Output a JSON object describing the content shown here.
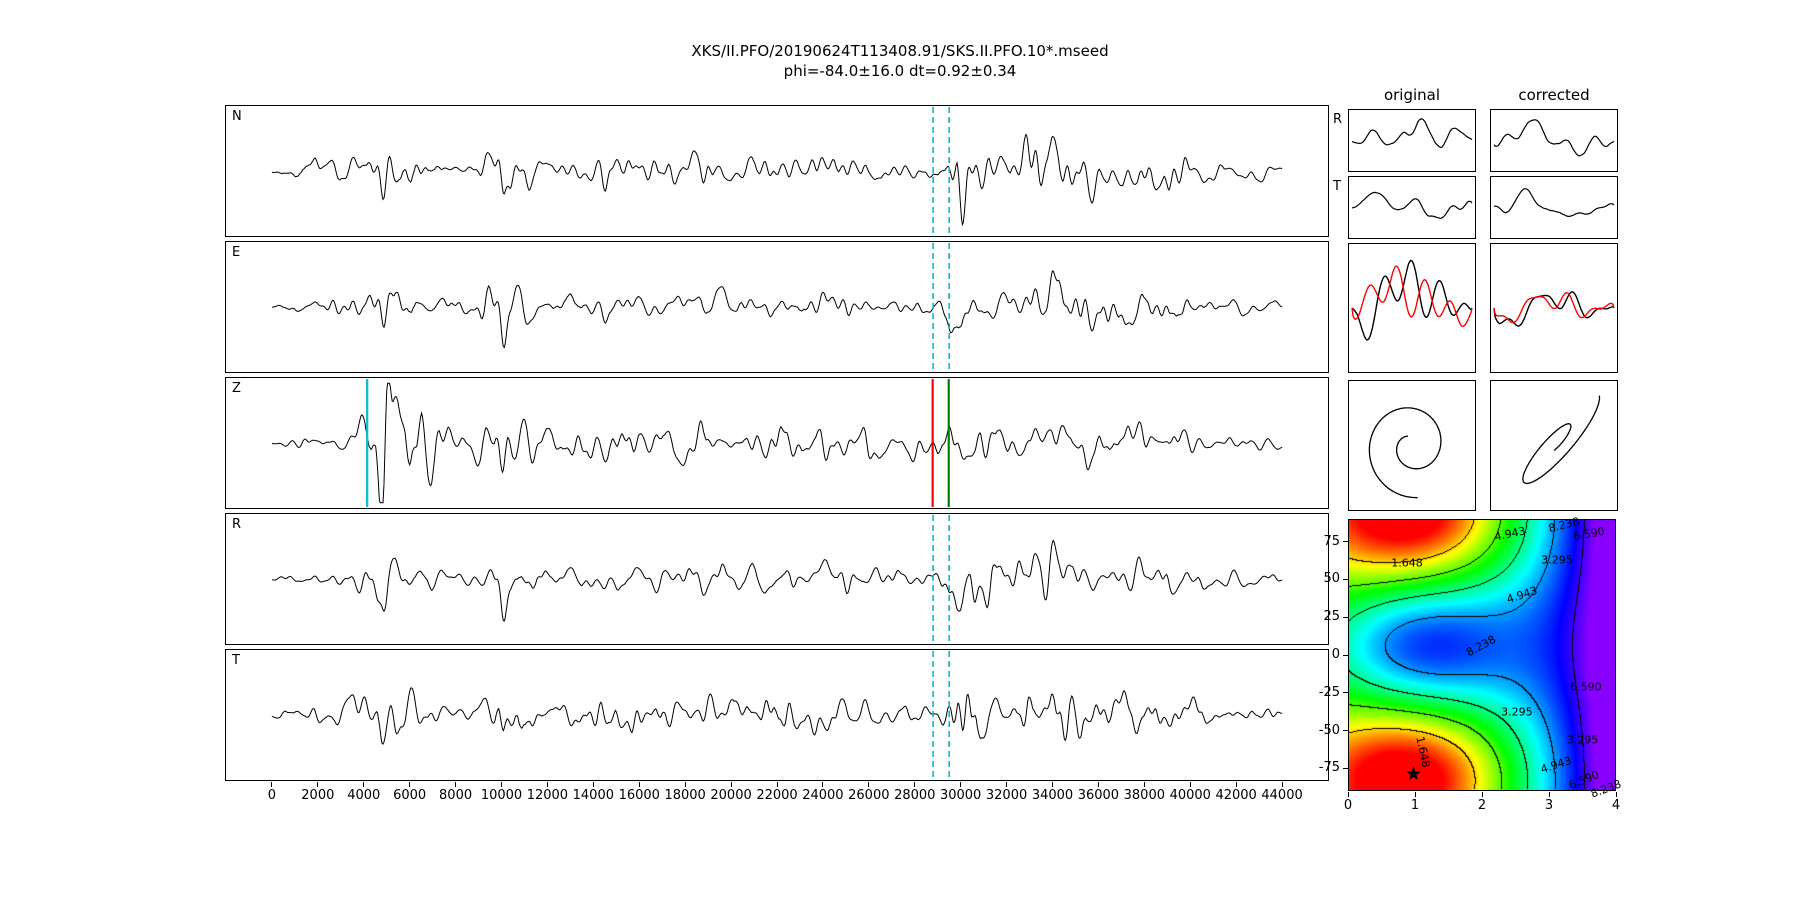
{
  "title": {
    "line1": "XKS/II.PFO/20190624T113408.91/SKS.II.PFO.10*.mseed",
    "line2": "phi=-84.0±16.0 dt=0.92±0.34"
  },
  "chart_data": {
    "type": "multi-panel seismic shear-wave-splitting figure",
    "waveforms": {
      "type": "line",
      "xlim": [
        -2000,
        46000
      ],
      "xticks": [
        0,
        2000,
        4000,
        6000,
        8000,
        10000,
        12000,
        14000,
        16000,
        18000,
        20000,
        22000,
        24000,
        26000,
        28000,
        30000,
        32000,
        34000,
        36000,
        38000,
        40000,
        42000,
        44000
      ],
      "trace_color": "#000000",
      "panels": [
        {
          "label": "N",
          "seed": 11,
          "env": {
            "base": 0.15,
            "bumps": [
              [
                1800,
                900,
                0.12
              ],
              [
                5200,
                1500,
                0.5
              ],
              [
                10400,
                900,
                0.5
              ],
              [
                16000,
                6000,
                0.2
              ],
              [
                24000,
                4000,
                0.18
              ],
              [
                30300,
                900,
                0.85
              ],
              [
                33500,
                2500,
                0.45
              ],
              [
                38500,
                3000,
                0.3
              ]
            ]
          },
          "markers": [
            {
              "x": 28800,
              "color": "#00bcd4",
              "style": "dashed"
            },
            {
              "x": 29500,
              "color": "#00bcd4",
              "style": "dashed"
            }
          ]
        },
        {
          "label": "E",
          "seed": 22,
          "env": {
            "base": 0.15,
            "bumps": [
              [
                5000,
                1600,
                0.45
              ],
              [
                9800,
                1200,
                0.4
              ],
              [
                16000,
                6000,
                0.22
              ],
              [
                23000,
                3500,
                0.2
              ],
              [
                30100,
                800,
                0.85
              ],
              [
                34500,
                3000,
                0.5
              ],
              [
                39000,
                2500,
                0.28
              ]
            ]
          },
          "markers": [
            {
              "x": 28800,
              "color": "#00bcd4",
              "style": "dashed"
            },
            {
              "x": 29500,
              "color": "#00bcd4",
              "style": "dashed"
            }
          ]
        },
        {
          "label": "Z",
          "seed": 33,
          "env": {
            "base": 0.15,
            "bumps": [
              [
                4700,
                700,
                1.6
              ],
              [
                5900,
                700,
                1.0
              ],
              [
                7000,
                600,
                0.6
              ],
              [
                10000,
                1500,
                0.5
              ],
              [
                17000,
                7000,
                0.28
              ],
              [
                25000,
                3000,
                0.2
              ],
              [
                30500,
                1500,
                0.45
              ],
              [
                36000,
                4000,
                0.33
              ]
            ]
          },
          "markers": [
            {
              "x": 4150,
              "color": "#00bcd4",
              "style": "solid"
            },
            {
              "x": 28780,
              "color": "#ff0000",
              "style": "solid"
            },
            {
              "x": 29480,
              "color": "#008000",
              "style": "solid"
            }
          ]
        },
        {
          "label": "R",
          "seed": 44,
          "env": {
            "base": 0.15,
            "bumps": [
              [
                5200,
                1500,
                0.5
              ],
              [
                10400,
                900,
                0.45
              ],
              [
                16000,
                6000,
                0.2
              ],
              [
                24000,
                4000,
                0.2
              ],
              [
                30400,
                1000,
                0.95
              ],
              [
                33200,
                2200,
                0.5
              ],
              [
                38500,
                2500,
                0.33
              ]
            ]
          },
          "markers": [
            {
              "x": 28800,
              "color": "#00bcd4",
              "style": "dashed"
            },
            {
              "x": 29500,
              "color": "#00bcd4",
              "style": "dashed"
            }
          ]
        },
        {
          "label": "T",
          "seed": 55,
          "env": {
            "base": 0.15,
            "bumps": [
              [
                5000,
                1500,
                0.42
              ],
              [
                10500,
                1000,
                0.5
              ],
              [
                17000,
                6000,
                0.22
              ],
              [
                24000,
                3500,
                0.2
              ],
              [
                30500,
                900,
                0.75
              ],
              [
                34000,
                2000,
                0.5
              ],
              [
                38000,
                2500,
                0.3
              ]
            ]
          },
          "markers": [
            {
              "x": 28800,
              "color": "#00bcd4",
              "style": "dashed"
            },
            {
              "x": 29500,
              "color": "#00bcd4",
              "style": "dashed"
            }
          ]
        }
      ]
    },
    "pol_minis": {
      "original_label": "original",
      "corrected_label": "corrected",
      "row_labels": [
        "R",
        "T"
      ],
      "panels": [
        {
          "id": "R-original",
          "seed": 71
        },
        {
          "id": "R-corrected",
          "seed": 72
        },
        {
          "id": "T-original",
          "seed": 73
        },
        {
          "id": "T-corrected",
          "seed": 74
        }
      ]
    },
    "source_overlays": [
      {
        "id": "overlay-original",
        "black_seed": 21,
        "shift": 16,
        "black_color": "#000000",
        "red_color": "#ff0000"
      },
      {
        "id": "overlay-corrected",
        "black_seed": 23,
        "shift": 6,
        "black_color": "#000000",
        "red_color": "#ff0000"
      }
    ],
    "particle_motion": [
      {
        "id": "ppm-original",
        "style": "spiral",
        "color": "#000000"
      },
      {
        "id": "ppm-corrected",
        "style": "linear",
        "color": "#000000"
      }
    ],
    "error_surface": {
      "type": "heatmap",
      "xlim": [
        0,
        4
      ],
      "ylim": [
        -90,
        90
      ],
      "xticks": [
        0,
        1,
        2,
        3,
        4
      ],
      "yticks": [
        75,
        50,
        25,
        0,
        -25,
        -50,
        -75
      ],
      "levels": [
        1.648,
        3.295,
        4.943,
        6.59,
        8.238
      ],
      "colormap": "rainbow_r",
      "best": {
        "dt": 0.92,
        "phi": -84.0,
        "marker": "★"
      },
      "star_pos": {
        "x": 1.0,
        "y": -80
      },
      "model": {
        "phi0": -84,
        "dt0": 1.0,
        "sigma": 1.5,
        "amp": 4.0,
        "base0": 2.8,
        "base2": 0.45,
        "vmax": 8.8
      },
      "labels": [
        {
          "t": "1.648",
          "x": 0.88,
          "y": 61,
          "r": 0
        },
        {
          "t": "4.943",
          "x": 2.42,
          "y": 80,
          "r": -12
        },
        {
          "t": "8.238",
          "x": 3.22,
          "y": 86,
          "r": -14
        },
        {
          "t": "6.590",
          "x": 3.6,
          "y": 80,
          "r": -10
        },
        {
          "t": "3.295",
          "x": 3.12,
          "y": 63,
          "r": 0
        },
        {
          "t": "4.943",
          "x": 2.6,
          "y": 40,
          "r": -18
        },
        {
          "t": "8.238",
          "x": 1.98,
          "y": 6,
          "r": -28
        },
        {
          "t": "6.590",
          "x": 3.55,
          "y": -21,
          "r": 0
        },
        {
          "t": "3.295",
          "x": 2.52,
          "y": -38,
          "r": 0
        },
        {
          "t": "3.295",
          "x": 3.5,
          "y": -56,
          "r": 0
        },
        {
          "t": "1.648",
          "x": 1.12,
          "y": -64,
          "r": 78
        },
        {
          "t": "4.943",
          "x": 3.1,
          "y": -73,
          "r": -18
        },
        {
          "t": "6.590",
          "x": 3.52,
          "y": -83,
          "r": -22
        },
        {
          "t": "8.238",
          "x": 3.85,
          "y": -89,
          "r": -20
        }
      ]
    }
  }
}
